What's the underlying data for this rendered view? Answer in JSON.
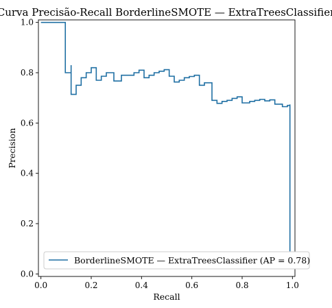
{
  "chart_data": {
    "type": "line",
    "title": "Curva Precisão-Recall BorderlineSMOTE — ExtraTreesClassifier",
    "xlabel": "Recall",
    "ylabel": "Precision",
    "xlim": [
      -0.01,
      1.01
    ],
    "ylim": [
      -0.01,
      1.01
    ],
    "x_ticks": [
      "0.0",
      "0.2",
      "0.4",
      "0.6",
      "0.8",
      "1.0"
    ],
    "y_ticks": [
      "0.0",
      "0.2",
      "0.4",
      "0.6",
      "0.8",
      "1.0"
    ],
    "grid": false,
    "legend": {
      "position": "lower-right",
      "label": "BorderlineSMOTE — ExtraTreesClassifier (AP = 0.78)"
    },
    "color": "#1f6fa3",
    "series": [
      {
        "name": "BorderlineSMOTE — ExtraTreesClassifier (AP = 0.78)",
        "drawstyle": "steps-post",
        "x": [
          0.0,
          0.097,
          0.097,
          0.12,
          0.12,
          0.14,
          0.16,
          0.18,
          0.2,
          0.22,
          0.24,
          0.26,
          0.29,
          0.29,
          0.32,
          0.34,
          0.37,
          0.39,
          0.41,
          0.41,
          0.43,
          0.45,
          0.47,
          0.49,
          0.51,
          0.53,
          0.53,
          0.55,
          0.57,
          0.59,
          0.61,
          0.63,
          0.63,
          0.65,
          0.68,
          0.68,
          0.7,
          0.7,
          0.72,
          0.74,
          0.76,
          0.78,
          0.8,
          0.8,
          0.83,
          0.85,
          0.87,
          0.89,
          0.91,
          0.93,
          0.93,
          0.96,
          0.96,
          0.98,
          0.99,
          0.99
        ],
        "y": [
          1.0,
          1.0,
          0.8,
          0.83,
          0.714,
          0.75,
          0.78,
          0.8,
          0.82,
          0.77,
          0.786,
          0.8,
          0.8,
          0.767,
          0.79,
          0.79,
          0.8,
          0.81,
          0.81,
          0.78,
          0.79,
          0.8,
          0.806,
          0.812,
          0.786,
          0.786,
          0.763,
          0.77,
          0.78,
          0.785,
          0.79,
          0.79,
          0.75,
          0.76,
          0.76,
          0.69,
          0.69,
          0.678,
          0.686,
          0.69,
          0.698,
          0.704,
          0.704,
          0.68,
          0.686,
          0.69,
          0.694,
          0.688,
          0.692,
          0.692,
          0.675,
          0.669,
          0.665,
          0.67,
          0.674,
          0.09
        ]
      }
    ]
  }
}
